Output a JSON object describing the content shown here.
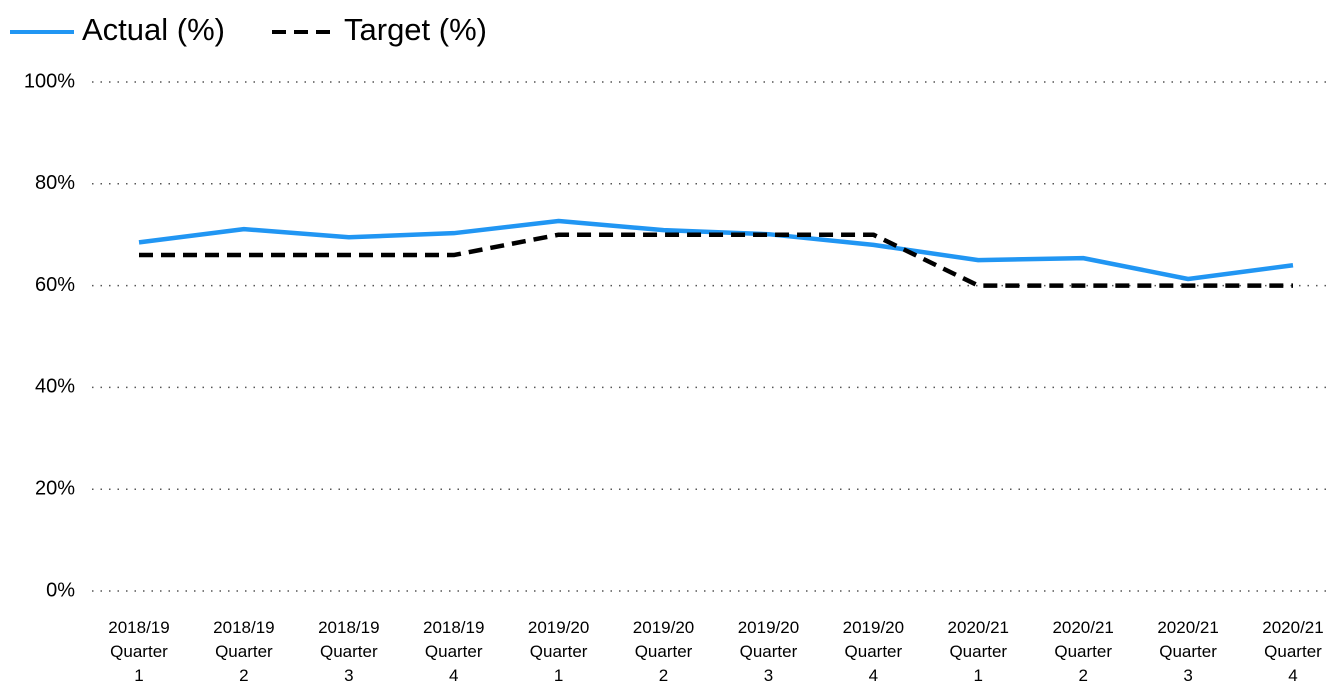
{
  "chart_data": {
    "type": "line",
    "categories": [
      "2018/19 Quarter 1",
      "2018/19 Quarter 2",
      "2018/19 Quarter 3",
      "2018/19 Quarter 4",
      "2019/20 Quarter 1",
      "2019/20 Quarter 2",
      "2019/20 Quarter 3",
      "2019/20 Quarter 4",
      "2020/21 Quarter 1",
      "2020/21 Quarter 2",
      "2020/21 Quarter 3",
      "2020/21 Quarter 4"
    ],
    "series": [
      {
        "name": "Actual (%)",
        "color": "#2196f3",
        "dashed": false,
        "values": [
          68.5,
          71.1,
          69.5,
          70.3,
          72.7,
          70.9,
          70.1,
          68.0,
          65.0,
          65.4,
          61.3,
          64.0
        ]
      },
      {
        "name": "Target (%)",
        "color": "#000000",
        "dashed": true,
        "values": [
          66,
          66,
          66,
          66,
          70,
          70,
          70,
          70,
          60,
          60,
          60,
          60
        ]
      }
    ],
    "ylim": [
      0,
      100
    ],
    "yticks": [
      {
        "value": 0,
        "label": "0%"
      },
      {
        "value": 20,
        "label": "20%"
      },
      {
        "value": 40,
        "label": "40%"
      },
      {
        "value": 60,
        "label": "60%"
      },
      {
        "value": 80,
        "label": "80%"
      },
      {
        "value": 100,
        "label": "100%"
      }
    ],
    "grid": true,
    "legend": "top-left"
  }
}
